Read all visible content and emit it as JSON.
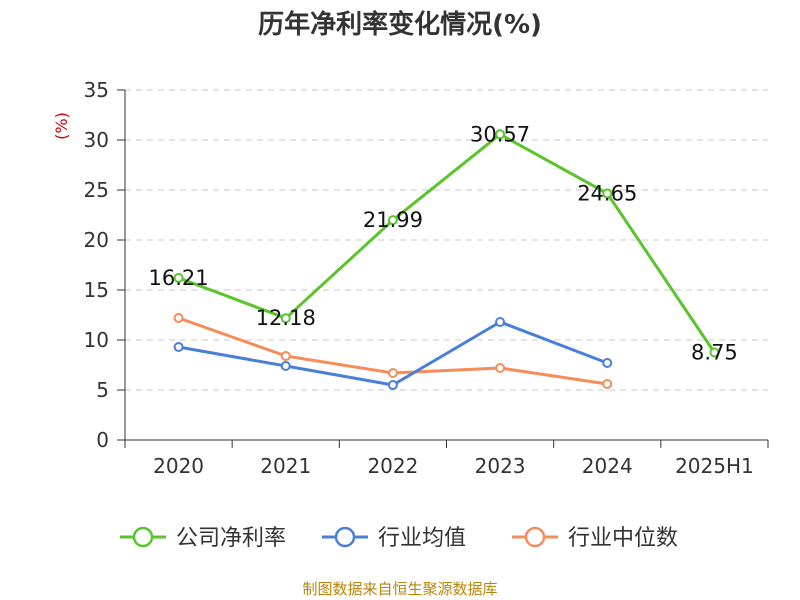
{
  "chart_data": {
    "type": "line",
    "title": "历年净利率变化情况(%)",
    "ylabel": "(%)",
    "xlabel": "",
    "categories": [
      "2020",
      "2021",
      "2022",
      "2023",
      "2024",
      "2025H1"
    ],
    "ylim": [
      0,
      35
    ],
    "yticks": [
      0,
      5,
      10,
      15,
      20,
      25,
      30,
      35
    ],
    "grid": "horizontal-dashed",
    "legend_position": "bottom",
    "series": [
      {
        "name": "公司净利率",
        "color": "#5ac42b",
        "values": [
          16.21,
          12.18,
          21.99,
          30.57,
          24.65,
          8.75
        ],
        "labels": [
          "16.21",
          "12.18",
          "21.99",
          "30.57",
          "24.65",
          "8.75"
        ]
      },
      {
        "name": "行业均值",
        "color": "#4a7fd8",
        "values": [
          9.3,
          7.4,
          5.5,
          11.8,
          7.7,
          null
        ]
      },
      {
        "name": "行业中位数",
        "color": "#f58c5a",
        "values": [
          12.2,
          8.4,
          6.7,
          7.2,
          5.6,
          null
        ]
      }
    ]
  },
  "source_text": "制图数据来自恒生聚源数据库"
}
